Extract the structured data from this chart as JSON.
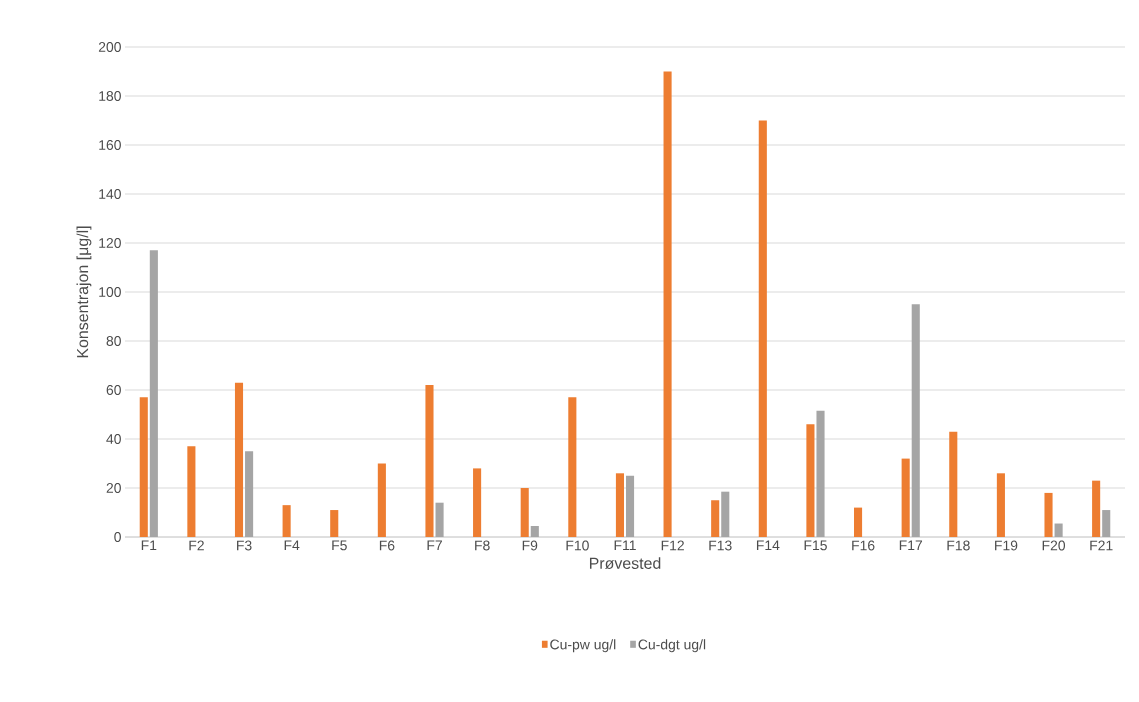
{
  "chart_data": {
    "type": "bar",
    "xlabel": "Prøvested",
    "ylabel": "Konsentrajon [μg/l]",
    "categories": [
      "F1",
      "F2",
      "F3",
      "F4",
      "F5",
      "F6",
      "F7",
      "F8",
      "F9",
      "F10",
      "F11",
      "F12",
      "F13",
      "F14",
      "F15",
      "F16",
      "F17",
      "F18",
      "F19",
      "F20",
      "F21"
    ],
    "series": [
      {
        "name": "Cu-pw ug/l",
        "color": "#ed7d31",
        "values": [
          57,
          37,
          63,
          13,
          11,
          30,
          62,
          28,
          20,
          57,
          26,
          190,
          15,
          170,
          46,
          12,
          32,
          43,
          26,
          18,
          23
        ]
      },
      {
        "name": "Cu-dgt ug/l",
        "color": "#a5a5a5",
        "values": [
          117,
          null,
          35,
          null,
          null,
          null,
          14,
          null,
          4.5,
          null,
          25,
          null,
          18.5,
          null,
          51.5,
          null,
          95,
          null,
          null,
          5.5,
          11
        ]
      }
    ],
    "ylim": [
      0,
      200
    ],
    "yticks": [
      0,
      20,
      40,
      60,
      80,
      100,
      120,
      140,
      160,
      180,
      200
    ],
    "grid": "y",
    "legend": "bottom"
  }
}
